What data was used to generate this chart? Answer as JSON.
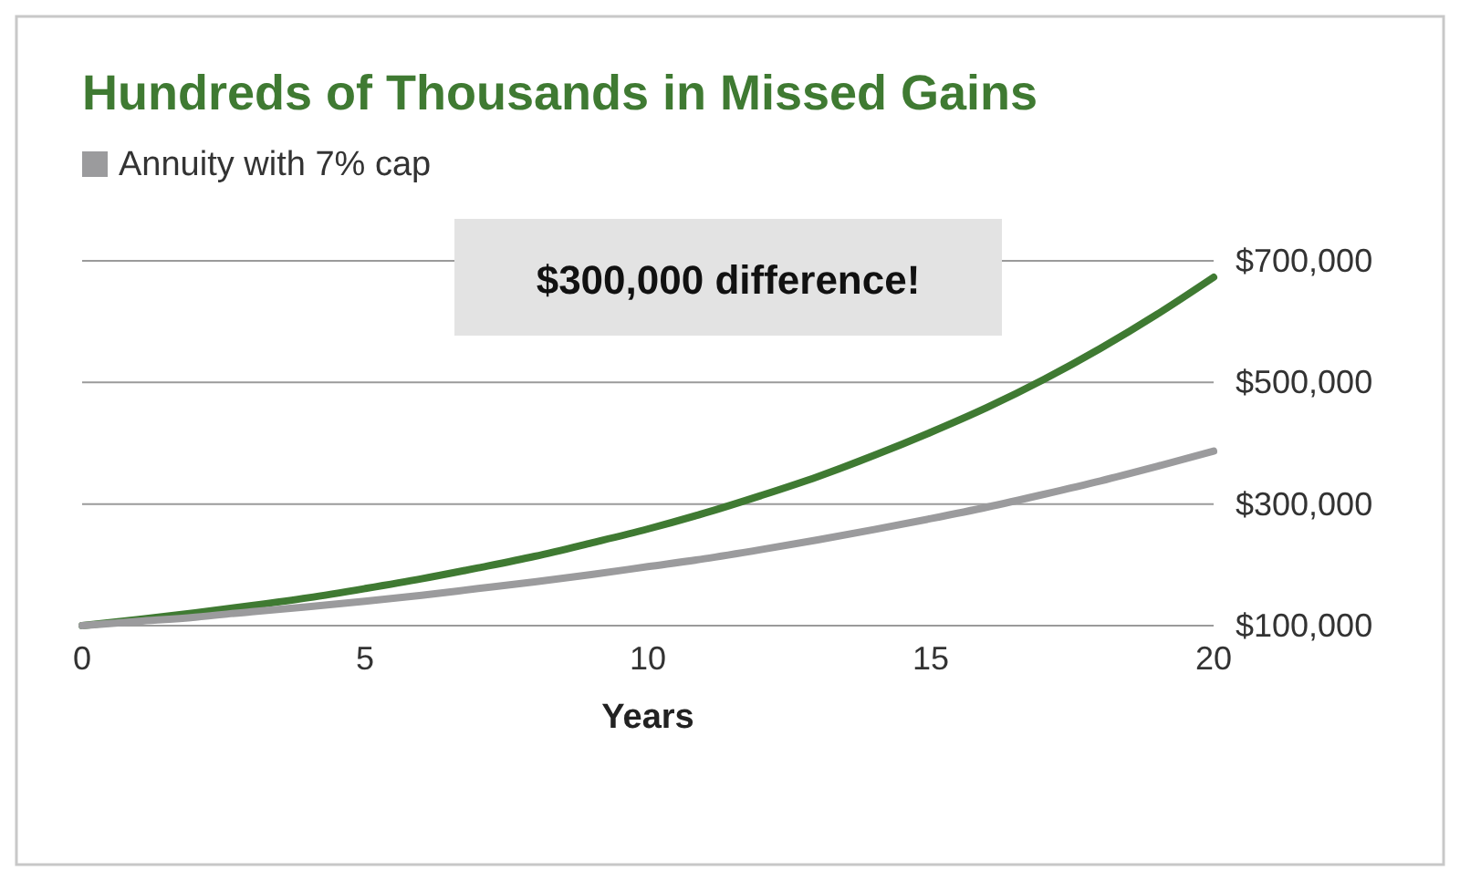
{
  "chart_data": {
    "type": "line",
    "title": "Hundreds of Thousands in Missed Gains",
    "xlabel": "Years",
    "x": [
      0,
      1,
      2,
      3,
      4,
      5,
      6,
      7,
      8,
      9,
      10,
      11,
      12,
      13,
      14,
      15,
      16,
      17,
      18,
      19,
      20
    ],
    "series": [
      {
        "color": "#3f7a32",
        "values": [
          100000,
          110000,
          121000,
          133000,
          146000,
          161000,
          177000,
          195000,
          214000,
          236000,
          259000,
          285000,
          314000,
          345000,
          380000,
          418000,
          459000,
          505000,
          556000,
          612000,
          673000
        ]
      },
      {
        "name": "Annuity with 7% cap",
        "color": "#9b9b9d",
        "values": [
          100000,
          107000,
          114000,
          123000,
          131000,
          140000,
          150000,
          161000,
          172000,
          184000,
          197000,
          210000,
          225000,
          241000,
          258000,
          276000,
          295000,
          316000,
          338000,
          362000,
          387000
        ]
      }
    ],
    "xlim": [
      0,
      20
    ],
    "xticks": [
      0,
      5,
      10,
      15,
      20
    ],
    "ylim": [
      100000,
      700000
    ],
    "yticks": [
      {
        "value": 100000,
        "label": "$100,000"
      },
      {
        "value": 300000,
        "label": "$300,000"
      },
      {
        "value": 500000,
        "label": "$500,000"
      },
      {
        "value": 700000,
        "label": "$700,000"
      }
    ],
    "grid": "y",
    "legend": "top left",
    "marker": "none",
    "line_style": "solid",
    "annotations": [
      "$300,000 difference!"
    ]
  }
}
